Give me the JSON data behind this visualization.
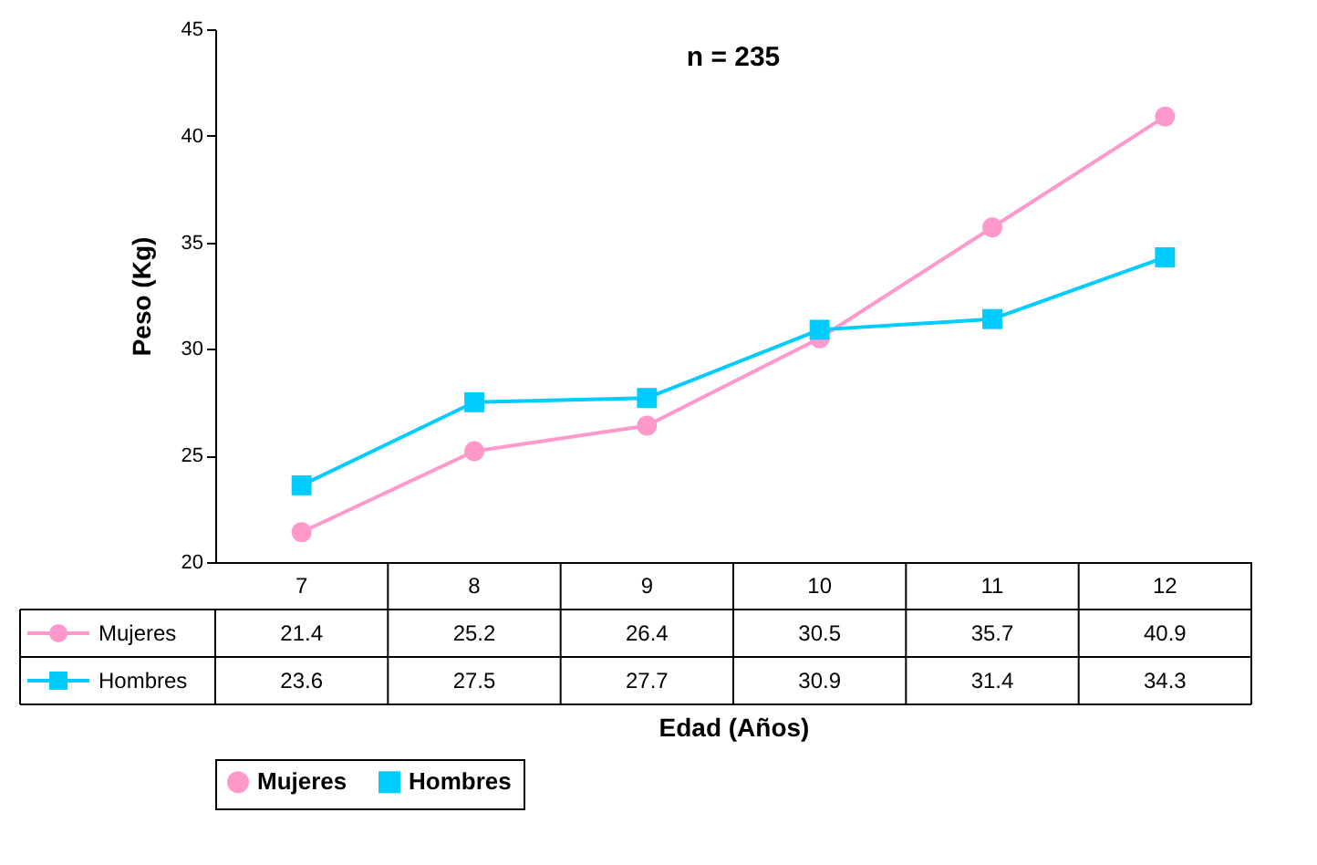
{
  "chart_data": {
    "type": "line",
    "title": "n = 235",
    "xlabel": "Edad (Años)",
    "ylabel": "Peso (Kg)",
    "categories": [
      "7",
      "8",
      "9",
      "10",
      "11",
      "12"
    ],
    "series": [
      {
        "name": "Mujeres",
        "color": "#ff99cc",
        "marker": "circle",
        "values": [
          21.4,
          25.2,
          26.4,
          30.5,
          35.7,
          40.9
        ]
      },
      {
        "name": "Hombres",
        "color": "#00ccff",
        "marker": "square",
        "values": [
          23.6,
          27.5,
          27.7,
          30.9,
          31.4,
          34.3
        ]
      }
    ],
    "ylim": [
      20,
      45
    ],
    "yticks": [
      20,
      25,
      30,
      35,
      40,
      45
    ],
    "data_labels": true,
    "legend": "bottom"
  }
}
